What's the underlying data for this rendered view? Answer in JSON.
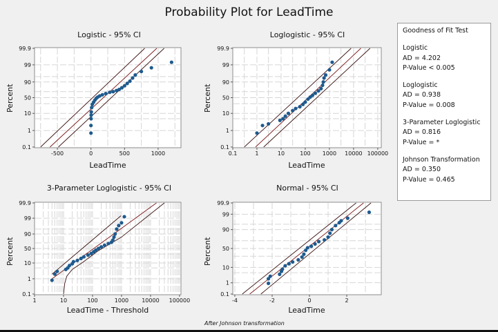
{
  "title": "Probability Plot for LeadTime",
  "footnote": "After Johnson transformation",
  "colors": {
    "points": "#1e5a8e",
    "fit": "#7a1616",
    "ci": "#3a1010",
    "grid": "#d6d6d6",
    "background": "#f0f0f0"
  },
  "legend": {
    "title": "Goodness of Fit Test",
    "entries": [
      {
        "name": "Logistic",
        "ad": "AD = 4.202",
        "p": "P-Value < 0.005"
      },
      {
        "name": "Loglogistic",
        "ad": "AD = 0.938",
        "p": "P-Value = 0.008"
      },
      {
        "name": "3-Parameter Loglogistic",
        "ad": "AD = 0.816",
        "p": "P-Value = *"
      },
      {
        "name": "Johnson Transformation",
        "ad": "AD = 0.350",
        "p": "P-Value = 0.465"
      }
    ]
  },
  "chart_data": [
    {
      "type": "scatter",
      "title": "Logistic - 95% CI",
      "xlabel": "LeadTime",
      "ylabel": "Percent",
      "xscale": "linear",
      "yscale": "logistic-probability",
      "xlim": [
        -840,
        1340
      ],
      "ylim": [
        0.1,
        99.9
      ],
      "xticks": [
        -500,
        0,
        500,
        1000
      ],
      "xtick_labels": [
        "-500",
        "0",
        "500",
        "1000"
      ],
      "yticks": [
        0.1,
        1,
        10,
        50,
        90,
        99,
        99.9
      ],
      "ytick_labels": [
        "0.1",
        "1",
        "10",
        "50",
        "90",
        "99",
        "99.9"
      ],
      "grid": true,
      "points": [
        [
          0,
          0.7
        ],
        [
          0,
          2
        ],
        [
          2,
          5
        ],
        [
          3,
          8
        ],
        [
          5,
          12
        ],
        [
          10,
          20
        ],
        [
          20,
          28
        ],
        [
          40,
          35
        ],
        [
          60,
          42
        ],
        [
          80,
          48
        ],
        [
          100,
          52
        ],
        [
          130,
          56
        ],
        [
          170,
          60
        ],
        [
          220,
          64
        ],
        [
          280,
          68
        ],
        [
          330,
          70
        ],
        [
          380,
          73
        ],
        [
          420,
          76
        ],
        [
          460,
          80
        ],
        [
          500,
          84
        ],
        [
          540,
          88
        ],
        [
          580,
          91
        ],
        [
          620,
          94
        ],
        [
          660,
          96
        ],
        [
          750,
          97.5
        ],
        [
          900,
          98.5
        ],
        [
          1200,
          99.3
        ]
      ],
      "fit_line": [
        [
          -610,
          0.1
        ],
        [
          980,
          99.9
        ]
      ],
      "ci_lower": [
        [
          -750,
          0.1
        ],
        [
          800,
          99.9
        ]
      ],
      "ci_upper": [
        [
          -485,
          0.1
        ],
        [
          1090,
          99.9
        ]
      ]
    },
    {
      "type": "scatter",
      "title": "Loglogistic - 95% CI",
      "xlabel": "LeadTime",
      "ylabel": "Percent",
      "xscale": "log",
      "yscale": "logistic-probability",
      "xlim": [
        0.1,
        140000
      ],
      "ylim": [
        0.1,
        99.9
      ],
      "xticks": [
        0.1,
        1,
        10,
        100,
        1000,
        10000,
        100000
      ],
      "xtick_labels": [
        "0.1",
        "1",
        "10",
        "100",
        "1000",
        "10000",
        "100000"
      ],
      "yticks": [
        0.1,
        1,
        10,
        50,
        90,
        99,
        99.9
      ],
      "ytick_labels": [
        "0.1",
        "1",
        "10",
        "50",
        "90",
        "99",
        "99.9"
      ],
      "grid": true,
      "points": [
        [
          1,
          0.7
        ],
        [
          1.7,
          2
        ],
        [
          3,
          2.5
        ],
        [
          9,
          4
        ],
        [
          12,
          5
        ],
        [
          15,
          7
        ],
        [
          20,
          10
        ],
        [
          30,
          14
        ],
        [
          40,
          18
        ],
        [
          60,
          22
        ],
        [
          80,
          28
        ],
        [
          100,
          35
        ],
        [
          130,
          45
        ],
        [
          160,
          52
        ],
        [
          200,
          58
        ],
        [
          260,
          65
        ],
        [
          350,
          72
        ],
        [
          450,
          78
        ],
        [
          520,
          85
        ],
        [
          560,
          90
        ],
        [
          600,
          94
        ],
        [
          700,
          96
        ],
        [
          1000,
          98
        ],
        [
          1300,
          99.3
        ]
      ],
      "fit_line": [
        [
          0.88,
          0.1
        ],
        [
          20000,
          99.9
        ]
      ],
      "ci_lower": [
        [
          0.3,
          0.1
        ],
        [
          7900,
          99.9
        ]
      ],
      "ci_upper": [
        [
          1.9,
          0.1
        ],
        [
          48000,
          99.9
        ]
      ]
    },
    {
      "type": "scatter",
      "title": "3-Parameter Loglogistic - 95% CI",
      "xlabel": "LeadTime - Threshold",
      "ylabel": "Percent",
      "xscale": "log",
      "yscale": "logistic-probability",
      "xlim": [
        1,
        112000
      ],
      "ylim": [
        0.1,
        99.9
      ],
      "xticks": [
        1,
        10,
        100,
        1000,
        10000,
        100000
      ],
      "xtick_labels": [
        "1",
        "10",
        "100",
        "1000",
        "10000",
        "100000"
      ],
      "yticks": [
        0.1,
        1,
        10,
        50,
        90,
        99,
        99.9
      ],
      "ytick_labels": [
        "0.1",
        "1",
        "10",
        "50",
        "90",
        "99",
        "99.9"
      ],
      "grid": true,
      "points": [
        [
          4,
          0.8
        ],
        [
          5,
          2
        ],
        [
          6,
          3
        ],
        [
          12,
          4
        ],
        [
          14,
          5
        ],
        [
          16,
          7
        ],
        [
          20,
          9
        ],
        [
          22,
          12
        ],
        [
          30,
          14
        ],
        [
          40,
          18
        ],
        [
          50,
          22
        ],
        [
          70,
          27
        ],
        [
          90,
          32
        ],
        [
          110,
          38
        ],
        [
          130,
          44
        ],
        [
          160,
          50
        ],
        [
          200,
          56
        ],
        [
          260,
          62
        ],
        [
          350,
          68
        ],
        [
          450,
          72
        ],
        [
          500,
          78
        ],
        [
          550,
          85
        ],
        [
          600,
          90
        ],
        [
          680,
          95
        ],
        [
          800,
          97
        ],
        [
          1000,
          98
        ],
        [
          1250,
          99.2
        ]
      ],
      "fit_line": [
        [
          4,
          1
        ],
        [
          16000,
          99.9
        ]
      ],
      "ci_lower": [
        [
          10,
          0.1
        ],
        [
          11,
          0.5
        ],
        [
          13,
          1.5
        ],
        [
          20,
          4
        ],
        [
          50,
          12
        ],
        [
          150,
          40
        ],
        [
          1000,
          85
        ],
        [
          30000,
          99.9
        ]
      ],
      "ci_upper": [
        [
          4,
          2
        ],
        [
          950,
          99.3
        ]
      ]
    },
    {
      "type": "scatter",
      "title": "Normal - 95% CI",
      "xlabel": "LeadTime",
      "ylabel": "Percent",
      "xscale": "linear",
      "yscale": "normal-probability",
      "xlim": [
        -4.11,
        3.85
      ],
      "ylim": [
        0.1,
        99.9
      ],
      "xticks": [
        -4,
        -2,
        0,
        2
      ],
      "xtick_labels": [
        "-4",
        "-2",
        "0",
        "2"
      ],
      "yticks": [
        0.1,
        1,
        10,
        50,
        90,
        99,
        99.9
      ],
      "ytick_labels": [
        "0.1",
        "1",
        "10",
        "50",
        "90",
        "99",
        "99.9"
      ],
      "grid": true,
      "points": [
        [
          -2.2,
          0.9
        ],
        [
          -2.2,
          2
        ],
        [
          -2.1,
          3
        ],
        [
          -1.6,
          4
        ],
        [
          -1.5,
          6
        ],
        [
          -1.45,
          8
        ],
        [
          -1.3,
          12
        ],
        [
          -1.1,
          15
        ],
        [
          -0.9,
          18
        ],
        [
          -0.6,
          22
        ],
        [
          -0.4,
          28
        ],
        [
          -0.3,
          35
        ],
        [
          -0.2,
          45
        ],
        [
          -0.1,
          52
        ],
        [
          0.1,
          56
        ],
        [
          0.3,
          62
        ],
        [
          0.5,
          68
        ],
        [
          0.8,
          72
        ],
        [
          1.0,
          78
        ],
        [
          1.1,
          85
        ],
        [
          1.2,
          90
        ],
        [
          1.4,
          94
        ],
        [
          1.6,
          96
        ],
        [
          1.7,
          97
        ],
        [
          2.05,
          98
        ],
        [
          3.2,
          99.3
        ]
      ],
      "fit_line": [
        [
          -3.2,
          0.1
        ],
        [
          2.9,
          99.9
        ]
      ],
      "ci_lower": [
        [
          -3.6,
          0.1
        ],
        [
          2.5,
          99.9
        ]
      ],
      "ci_upper": [
        [
          -2.6,
          0.1
        ],
        [
          3.3,
          99.9
        ]
      ]
    }
  ]
}
